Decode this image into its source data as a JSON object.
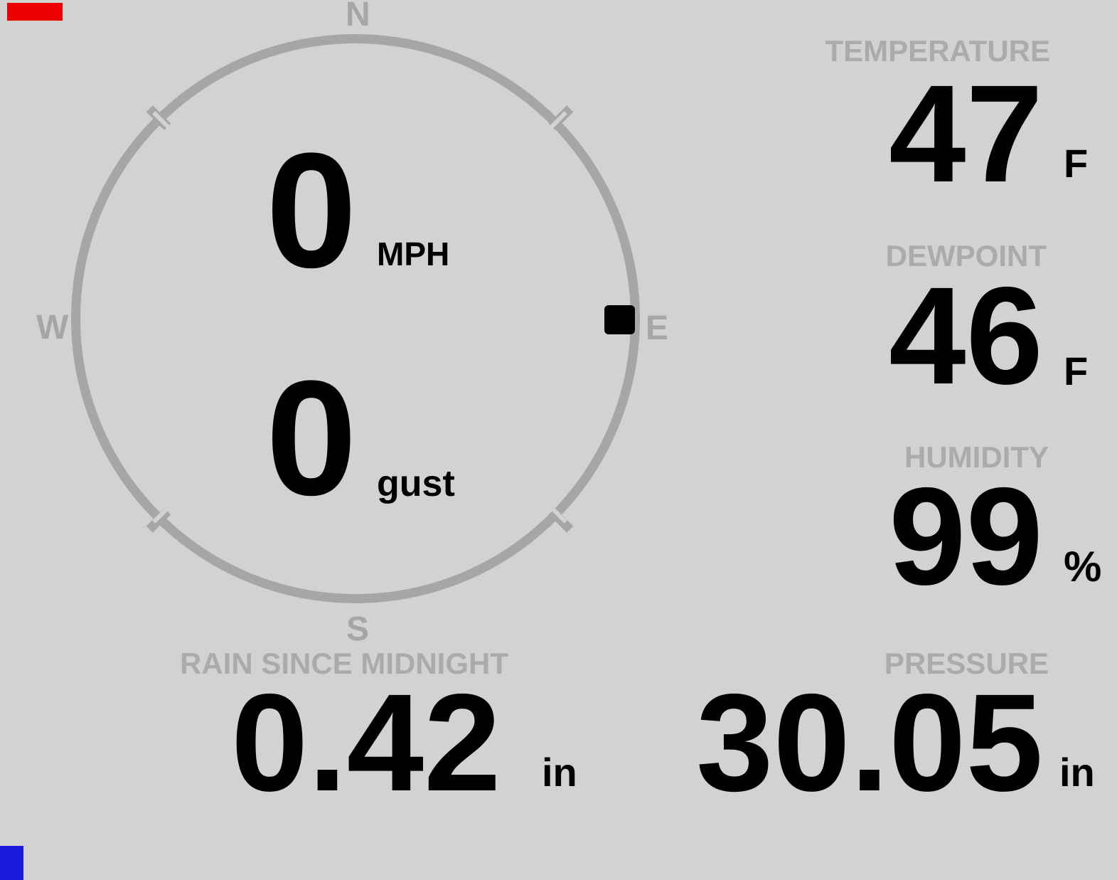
{
  "colors": {
    "background": "#d2d2d2",
    "muted_label": "#ababab",
    "compass_ring": "#a6a6a6",
    "value_text": "#000000",
    "red_patch": "#ee0000",
    "blue_patch": "#1a1ada"
  },
  "compass": {
    "cardinal_n": "N",
    "cardinal_e": "E",
    "cardinal_s": "S",
    "cardinal_w": "W",
    "marker_cardinal": "E",
    "speed": {
      "value": "0",
      "unit": "MPH"
    },
    "gust": {
      "value": "0",
      "unit": "gust"
    }
  },
  "stats": {
    "temperature": {
      "label": "TEMPERATURE",
      "value": "47",
      "unit": "F"
    },
    "dewpoint": {
      "label": "DEWPOINT",
      "value": "46",
      "unit": "F"
    },
    "humidity": {
      "label": "HUMIDITY",
      "value": "99",
      "unit": "%"
    },
    "rain": {
      "label": "RAIN SINCE MIDNIGHT",
      "value": "0.42",
      "unit": "in"
    },
    "pressure": {
      "label": "PRESSURE",
      "value": "30.05",
      "unit": "in"
    }
  }
}
